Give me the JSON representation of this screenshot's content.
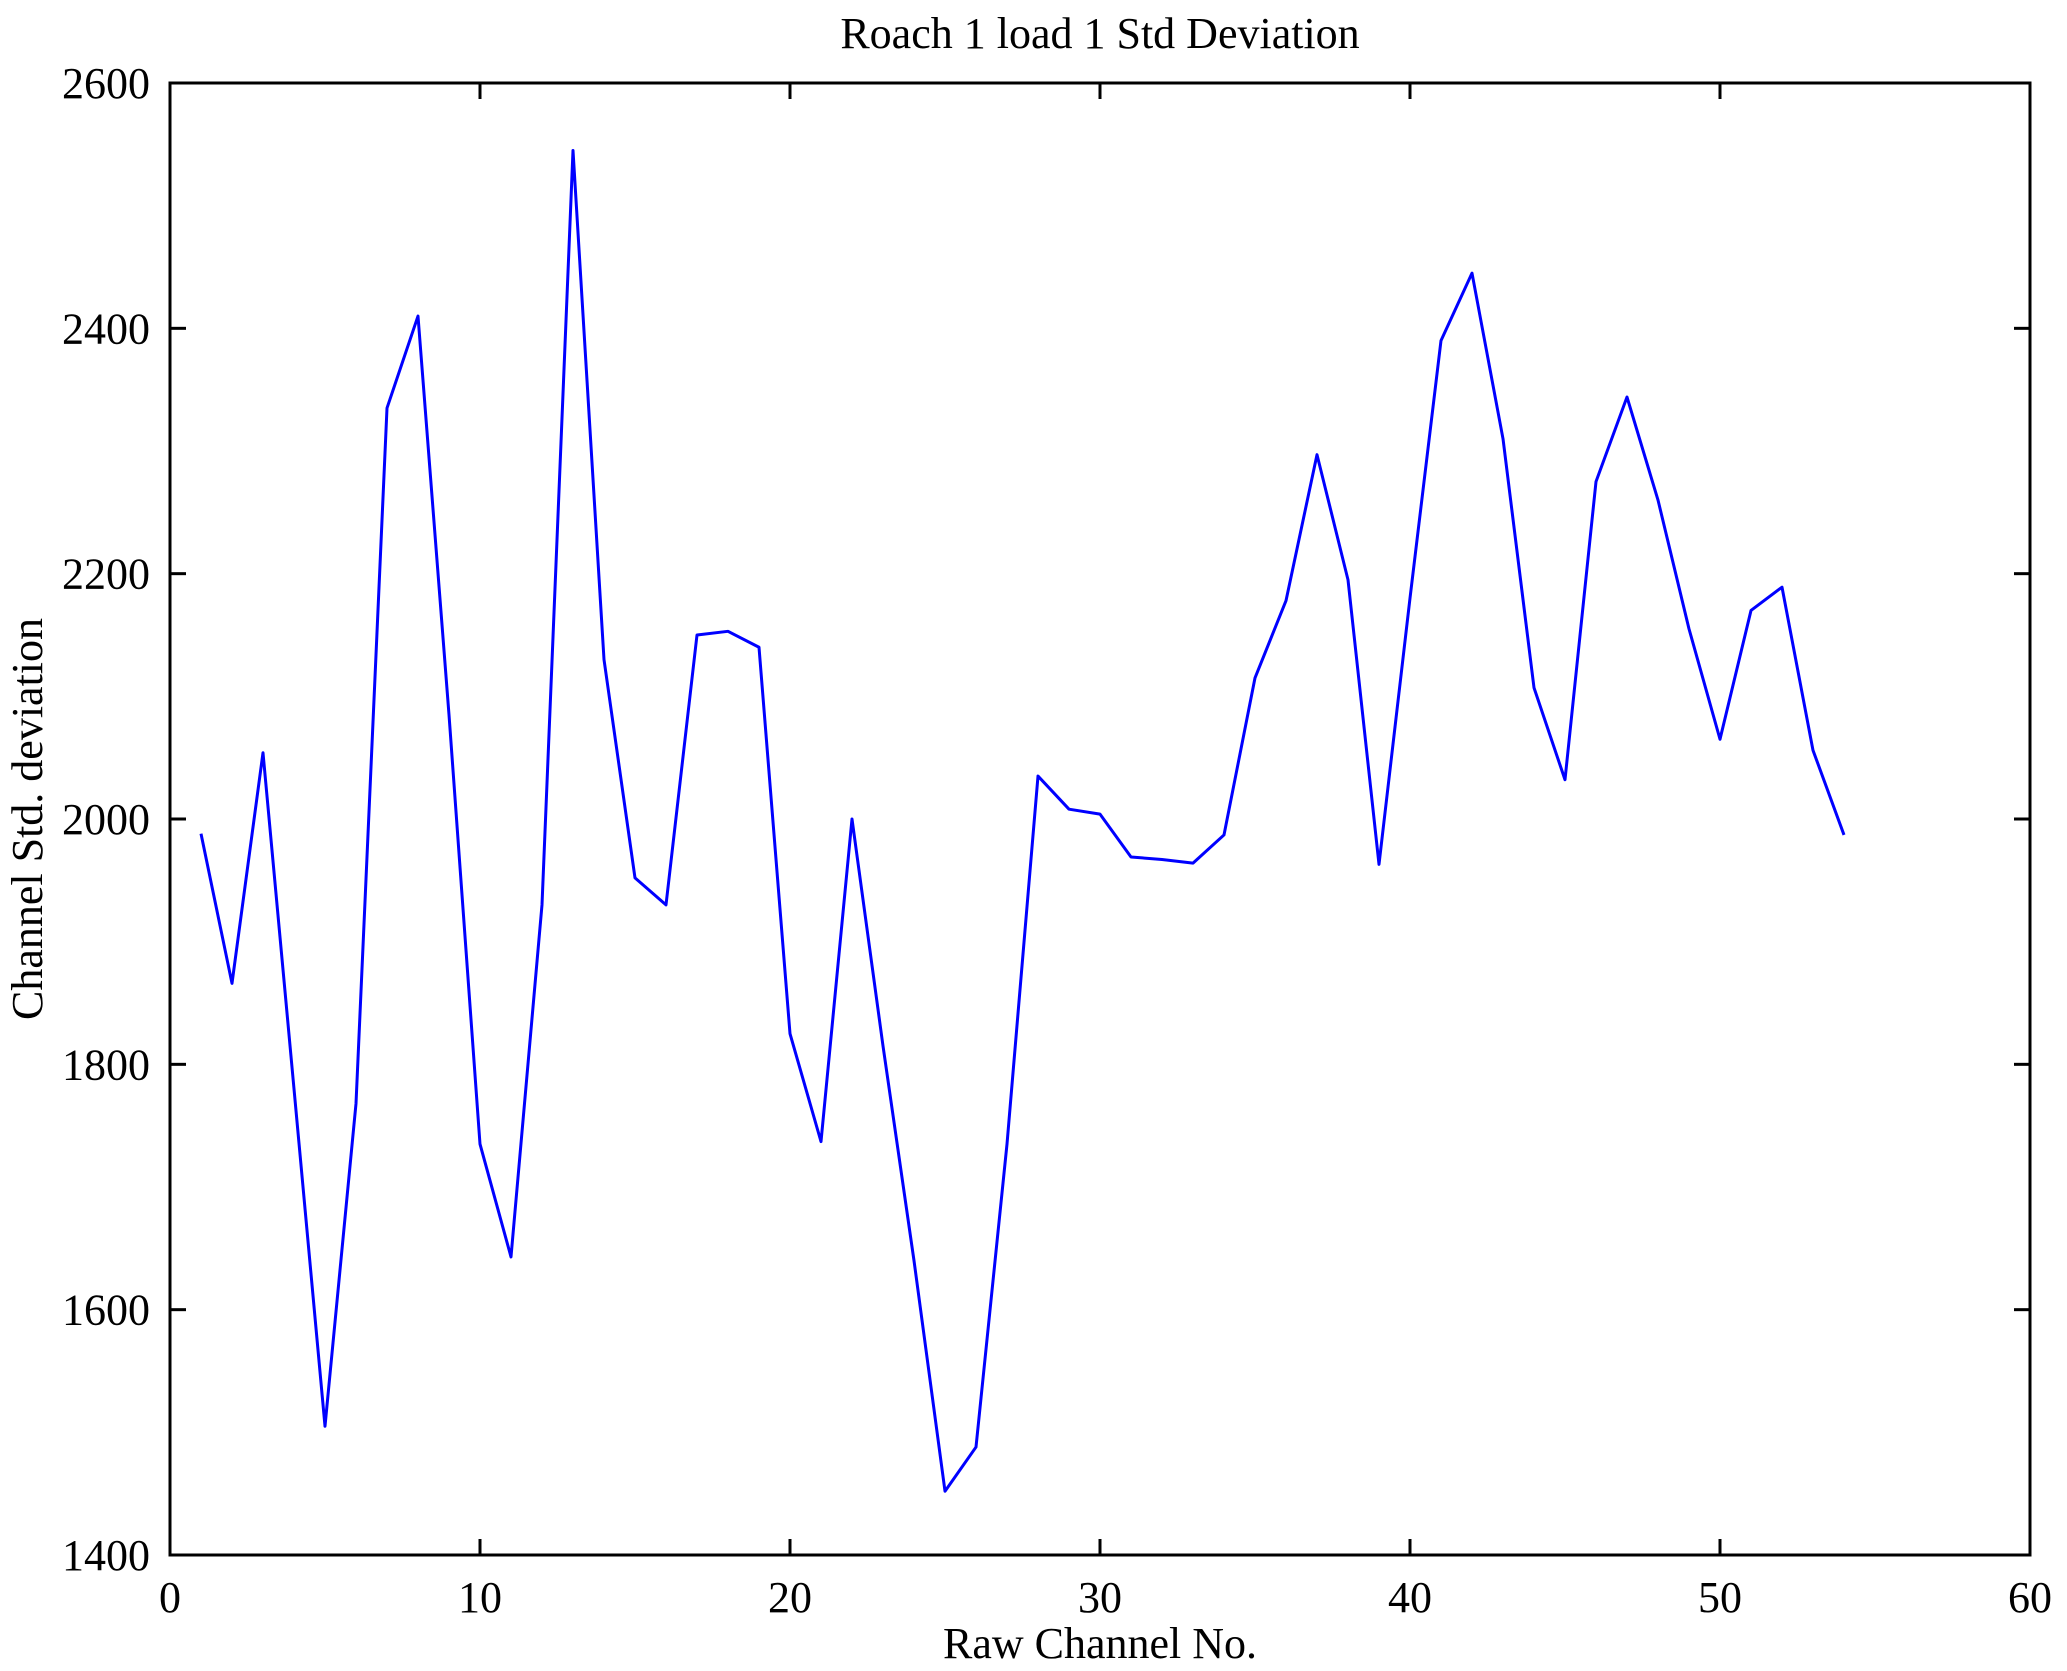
{
  "figure": {
    "background_color": "#ffffff",
    "axes_color": "#000000",
    "line_color": "#0000ff"
  },
  "chart_data": {
    "type": "line",
    "title": "Roach 1 load 1 Std Deviation",
    "xlabel": "Raw Channel No.",
    "ylabel": "Channel Std. deviation",
    "xlim": [
      0,
      60
    ],
    "ylim": [
      1400,
      2600
    ],
    "xticks": [
      0,
      10,
      20,
      30,
      40,
      50,
      60
    ],
    "yticks": [
      1400,
      1600,
      1800,
      2000,
      2200,
      2400,
      2600
    ],
    "grid": false,
    "legend": "none",
    "line_color": "#0000ff",
    "x": [
      1,
      2,
      3,
      4,
      5,
      6,
      7,
      8,
      9,
      10,
      11,
      12,
      13,
      14,
      15,
      16,
      17,
      18,
      19,
      20,
      21,
      22,
      23,
      24,
      25,
      26,
      27,
      28,
      29,
      30,
      31,
      32,
      33,
      34,
      35,
      36,
      37,
      38,
      39,
      40,
      41,
      42,
      43,
      44,
      45,
      46,
      47,
      48,
      49,
      50,
      51,
      52,
      53,
      54
    ],
    "values": [
      1988,
      1866,
      2054,
      1780,
      1505,
      1768,
      2335,
      2410,
      2085,
      1735,
      1643,
      1930,
      2545,
      2130,
      1952,
      1930,
      2150,
      2153,
      2140,
      1825,
      1737,
      2000,
      1815,
      1640,
      1452,
      1488,
      1735,
      2035,
      2008,
      2004,
      1969,
      1967,
      1964,
      1987,
      2115,
      2178,
      2297,
      2195,
      1963,
      2180,
      2390,
      2445,
      2310,
      2107,
      2032,
      2275,
      2344,
      2260,
      2155,
      2065,
      2170,
      2189,
      2056,
      1987
    ]
  }
}
